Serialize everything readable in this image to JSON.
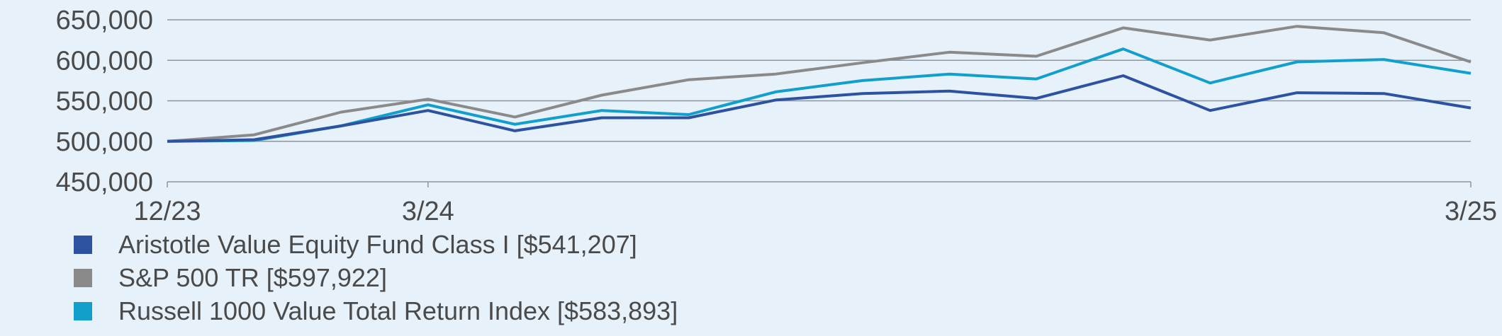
{
  "chart_data": {
    "type": "line",
    "title": "",
    "xlabel": "",
    "ylabel": "",
    "x": [
      "12/23",
      "1/24",
      "2/24",
      "3/24",
      "4/24",
      "5/24",
      "6/24",
      "7/24",
      "8/24",
      "9/24",
      "10/24",
      "11/24",
      "12/24",
      "1/25",
      "2/25",
      "3/25"
    ],
    "x_tick_labels": [
      {
        "index": 0,
        "label": "12/23"
      },
      {
        "index": 3,
        "label": "3/24"
      },
      {
        "index": 15,
        "label": "3/25"
      }
    ],
    "ylim": [
      450000,
      650000
    ],
    "y_ticks": [
      {
        "value": 650000,
        "label": "650,000"
      },
      {
        "value": 600000,
        "label": "600,000"
      },
      {
        "value": 550000,
        "label": "550,000"
      },
      {
        "value": 500000,
        "label": "500,000"
      },
      {
        "value": 450000,
        "label": "450,000"
      }
    ],
    "grid": true,
    "legend_position": "bottom-left",
    "series": [
      {
        "name": "Aristotle Value Equity Fund Class I [$541,207]",
        "color": "#2d52a0",
        "values": [
          500000,
          502000,
          519000,
          538000,
          513000,
          529000,
          529000,
          551000,
          559000,
          562000,
          553000,
          581000,
          538000,
          560000,
          559000,
          541207
        ]
      },
      {
        "name": "S&P 500 TR [$597,922]",
        "color": "#8a8a8a",
        "values": [
          500000,
          508000,
          536000,
          552000,
          530000,
          557000,
          576000,
          583000,
          597000,
          610000,
          605000,
          640000,
          625000,
          642000,
          634000,
          597922
        ]
      },
      {
        "name": "Russell 1000 Value Total Return Index [$583,893]",
        "color": "#129fcb",
        "values": [
          500000,
          501000,
          519000,
          545000,
          521000,
          538000,
          533000,
          561000,
          575000,
          583000,
          577000,
          614000,
          572000,
          598000,
          601000,
          583893
        ]
      }
    ]
  }
}
